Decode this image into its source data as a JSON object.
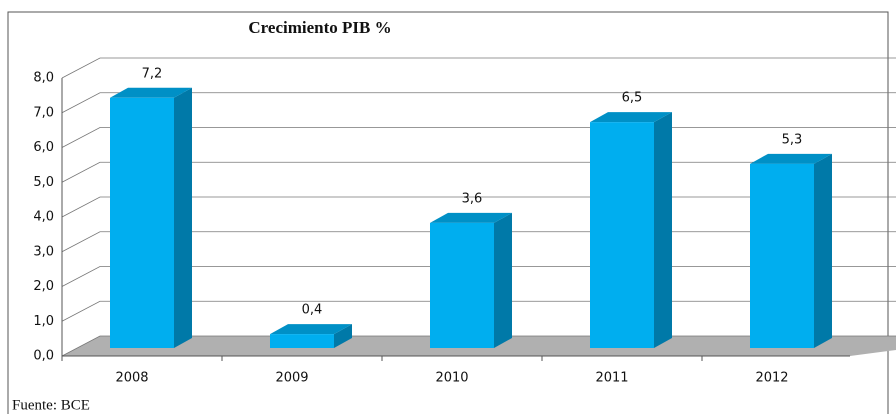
{
  "chart_data": {
    "type": "bar3d",
    "title": "Crecimiento PIB %",
    "categories": [
      "2008",
      "2009",
      "2010",
      "2011",
      "2012"
    ],
    "values": [
      7.2,
      0.4,
      3.6,
      6.5,
      5.3
    ],
    "value_labels": [
      "7,2",
      "0,4",
      "3,6",
      "6,5",
      "5,3"
    ],
    "color": "#00aeef",
    "ylim": [
      0,
      8
    ],
    "yticks": [
      {
        "value": 0,
        "label": "0,0"
      },
      {
        "value": 1,
        "label": "1,0"
      },
      {
        "value": 2,
        "label": "2,0"
      },
      {
        "value": 3,
        "label": "3,0"
      },
      {
        "value": 4,
        "label": "4,0"
      },
      {
        "value": 5,
        "label": "5,0"
      },
      {
        "value": 6,
        "label": "6,0"
      },
      {
        "value": 7,
        "label": "7,0"
      },
      {
        "value": 8,
        "label": "8,0"
      }
    ],
    "grid": true,
    "source": "Fuente: BCE"
  }
}
